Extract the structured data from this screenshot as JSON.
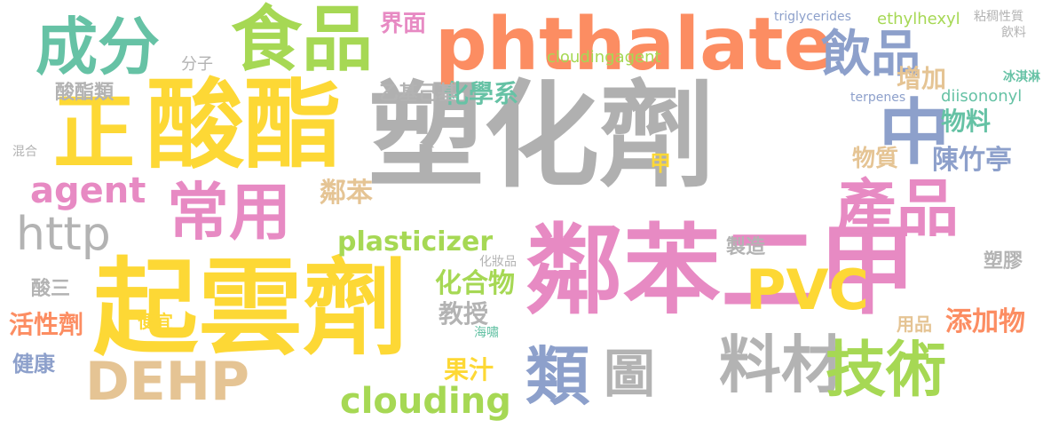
{
  "words": [
    {
      "text": "塑化劑",
      "color": "#b0b0b0"
    },
    {
      "text": "起雲劑",
      "color": "#fdd835"
    },
    {
      "text": "phthalate",
      "color": "#fc8d62"
    },
    {
      "text": "酸酯",
      "color": "#fdd835"
    },
    {
      "text": "鄰苯二甲",
      "color": "#e78ac3"
    },
    {
      "text": "食品",
      "color": "#a6d854"
    },
    {
      "text": "成分",
      "color": "#66c2a5"
    },
    {
      "text": "正",
      "color": "#fdd835"
    },
    {
      "text": "DEHP",
      "color": "#e5c494"
    },
    {
      "text": "料材",
      "color": "#b3b3b3"
    },
    {
      "text": "類",
      "color": "#8da0cb"
    },
    {
      "text": "常用",
      "color": "#e78ac3"
    },
    {
      "text": "產品",
      "color": "#e78ac3"
    },
    {
      "text": "技術",
      "color": "#a6d854"
    },
    {
      "text": "中",
      "color": "#8da0cb"
    },
    {
      "text": "飲品",
      "color": "#8da0cb"
    },
    {
      "text": "PVC",
      "color": "#fdd835"
    },
    {
      "text": "圖",
      "color": "#b3b3b3"
    },
    {
      "text": "http",
      "color": "#b3b3b3"
    },
    {
      "text": "clouding",
      "color": "#a6d854"
    },
    {
      "text": "agent",
      "color": "#e78ac3"
    },
    {
      "text": "plasticizer",
      "color": "#a6d854"
    },
    {
      "text": "化合物",
      "color": "#a6d854"
    },
    {
      "text": "化學系",
      "color": "#66c2a5"
    },
    {
      "text": "界面",
      "color": "#e78ac3"
    },
    {
      "text": "陳竹亭",
      "color": "#8da0cb"
    },
    {
      "text": "物料",
      "color": "#66c2a5"
    },
    {
      "text": "物質",
      "color": "#e5c494"
    },
    {
      "text": "增加",
      "color": "#e5c494"
    },
    {
      "text": "酸酯類",
      "color": "#b3b3b3"
    },
    {
      "text": "乙基己基",
      "color": "#b3b3b3"
    },
    {
      "text": "鄰苯",
      "color": "#e5c494"
    },
    {
      "text": "教授",
      "color": "#b3b3b3"
    },
    {
      "text": "添加物",
      "color": "#fc8d62"
    },
    {
      "text": "活性劑",
      "color": "#fc8d62"
    },
    {
      "text": "健康",
      "color": "#8da0cb"
    },
    {
      "text": "酸三",
      "color": "#b3b3b3"
    },
    {
      "text": "果汁",
      "color": "#fdd835"
    },
    {
      "text": "製造",
      "color": "#b3b3b3"
    },
    {
      "text": "塑膠",
      "color": "#b3b3b3"
    },
    {
      "text": "用品",
      "color": "#e5c494"
    },
    {
      "text": "ethylhexyl",
      "color": "#a6d854"
    },
    {
      "text": "cloudingagent",
      "color": "#a6d854"
    },
    {
      "text": "diisononyl",
      "color": "#66c2a5"
    },
    {
      "text": "便宜",
      "color": "#fdd835"
    },
    {
      "text": "甲",
      "color": "#fdd835"
    },
    {
      "text": "分子",
      "color": "#b3b3b3"
    },
    {
      "text": "triglycerides",
      "color": "#8da0cb"
    },
    {
      "text": "粘稠性質",
      "color": "#b3b3b3"
    },
    {
      "text": "飲料",
      "color": "#b3b3b3"
    },
    {
      "text": "冰淇淋",
      "color": "#66c2a5"
    },
    {
      "text": "terpenes",
      "color": "#8da0cb"
    },
    {
      "text": "化妝品",
      "color": "#b3b3b3"
    },
    {
      "text": "海嘯",
      "color": "#66c2a5"
    },
    {
      "text": "混合",
      "color": "#b3b3b3"
    }
  ]
}
